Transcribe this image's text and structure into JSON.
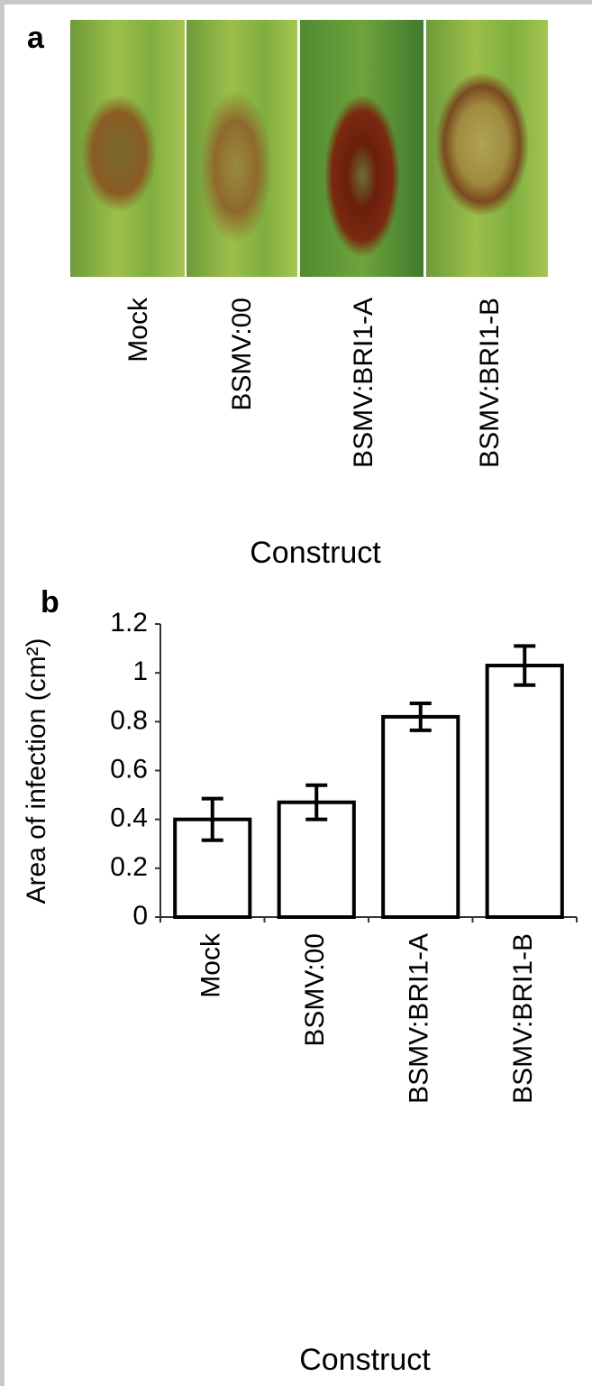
{
  "panel_a": {
    "label": "a",
    "categories": [
      "Mock",
      "BSMV:00",
      "BSMV:BRI1-A",
      "BSMV:BRI1-B"
    ],
    "xlabel": "Construct"
  },
  "chart_data": {
    "type": "bar",
    "label": "b",
    "categories": [
      "Mock",
      "BSMV:00",
      "BSMV:BRI1-A",
      "BSMV:BRI1-B"
    ],
    "values": [
      0.4,
      0.47,
      0.82,
      1.03
    ],
    "errors": [
      0.085,
      0.07,
      0.055,
      0.08
    ],
    "color": "#ffffff",
    "ylim": [
      0,
      1.2
    ],
    "yticks": [
      0,
      0.2,
      0.4,
      0.6,
      0.8,
      1,
      1.2
    ],
    "ylabel": "Area of infection (cm²)",
    "xlabel": "Construct",
    "grid": false
  }
}
